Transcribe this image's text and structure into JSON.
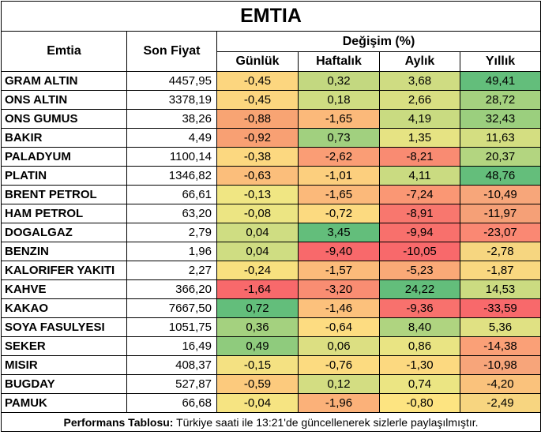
{
  "title": "EMTIA",
  "headers": {
    "commodity": "Emtia",
    "last_price": "Son Fiyat",
    "change_group": "Değişim (%)",
    "daily": "Günlük",
    "weekly": "Haftalık",
    "monthly": "Aylık",
    "yearly": "Yıllık"
  },
  "rows": [
    {
      "name": "GRAM ALTIN",
      "price": "4457,95",
      "daily": "-0,45",
      "weekly": "0,32",
      "monthly": "3,68",
      "yearly": "49,41"
    },
    {
      "name": "ONS ALTIN",
      "price": "3378,19",
      "daily": "-0,45",
      "weekly": "0,18",
      "monthly": "2,66",
      "yearly": "28,72"
    },
    {
      "name": "ONS GUMUS",
      "price": "38,26",
      "daily": "-0,88",
      "weekly": "-1,65",
      "monthly": "4,19",
      "yearly": "32,43"
    },
    {
      "name": "BAKIR",
      "price": "4,49",
      "daily": "-0,92",
      "weekly": "0,73",
      "monthly": "1,35",
      "yearly": "11,63"
    },
    {
      "name": "PALADYUM",
      "price": "1100,14",
      "daily": "-0,38",
      "weekly": "-2,62",
      "monthly": "-8,21",
      "yearly": "20,37"
    },
    {
      "name": "PLATIN",
      "price": "1346,82",
      "daily": "-0,63",
      "weekly": "-1,01",
      "monthly": "4,11",
      "yearly": "48,76"
    },
    {
      "name": "BRENT PETROL",
      "price": "66,61",
      "daily": "-0,13",
      "weekly": "-1,65",
      "monthly": "-7,24",
      "yearly": "-10,49"
    },
    {
      "name": "HAM PETROL",
      "price": "63,20",
      "daily": "-0,08",
      "weekly": "-0,72",
      "monthly": "-8,91",
      "yearly": "-11,97"
    },
    {
      "name": "DOGALGAZ",
      "price": "2,79",
      "daily": "0,04",
      "weekly": "3,45",
      "monthly": "-9,94",
      "yearly": "-23,07"
    },
    {
      "name": "BENZIN",
      "price": "1,96",
      "daily": "0,04",
      "weekly": "-9,40",
      "monthly": "-10,05",
      "yearly": "-2,78"
    },
    {
      "name": "KALORIFER YAKITI",
      "price": "2,27",
      "daily": "-0,24",
      "weekly": "-1,57",
      "monthly": "-5,23",
      "yearly": "-1,87"
    },
    {
      "name": "KAHVE",
      "price": "366,20",
      "daily": "-1,64",
      "weekly": "-3,20",
      "monthly": "24,22",
      "yearly": "14,53"
    },
    {
      "name": "KAKAO",
      "price": "7667,50",
      "daily": "0,72",
      "weekly": "-1,46",
      "monthly": "-9,36",
      "yearly": "-33,59"
    },
    {
      "name": "SOYA FASULYESI",
      "price": "1051,75",
      "daily": "0,36",
      "weekly": "-0,64",
      "monthly": "8,40",
      "yearly": "5,36"
    },
    {
      "name": "SEKER",
      "price": "16,49",
      "daily": "0,49",
      "weekly": "0,06",
      "monthly": "0,86",
      "yearly": "-14,38"
    },
    {
      "name": "MISIR",
      "price": "408,37",
      "daily": "-0,15",
      "weekly": "-0,76",
      "monthly": "-1,30",
      "yearly": "-10,98"
    },
    {
      "name": "BUGDAY",
      "price": "527,87",
      "daily": "-0,59",
      "weekly": "0,12",
      "monthly": "0,74",
      "yearly": "-4,20"
    },
    {
      "name": "PAMUK",
      "price": "66,68",
      "daily": "-0,04",
      "weekly": "-1,96",
      "monthly": "-0,80",
      "yearly": "-2,49"
    }
  ],
  "cell_colors": {
    "daily": [
      "#fcd67f",
      "#fcd67f",
      "#f8a473",
      "#f8a073",
      "#fcd880",
      "#fbbe7b",
      "#f0e683",
      "#ece583",
      "#cfdd82",
      "#cfdd82",
      "#f8e17f",
      "#f8696b",
      "#63be7b",
      "#a4d17f",
      "#8fcb7d",
      "#f4e182",
      "#fcca7d",
      "#f6e482"
    ],
    "weekly": [
      "#c3d880",
      "#cfdc82",
      "#fbb97a",
      "#a1d07f",
      "#fa9d75",
      "#fccf7e",
      "#fbb97a",
      "#fcda80",
      "#63be7b",
      "#f8696b",
      "#fbbb7a",
      "#f98d72",
      "#fcc17c",
      "#fddc81",
      "#dcdf82",
      "#fcdb80",
      "#d3dd82",
      "#fbb179"
    ],
    "monthly": [
      "#cfdc82",
      "#d9df82",
      "#c9db81",
      "#e6e383",
      "#f98b72",
      "#cadb81",
      "#fa9774",
      "#f8776e",
      "#f8706c",
      "#f8696b",
      "#faa977",
      "#63be7b",
      "#f8716d",
      "#afd480",
      "#e9e483",
      "#fcd980",
      "#ebe583",
      "#fde481"
    ],
    "yearly": [
      "#63be7b",
      "#a5d17f",
      "#9bcf7e",
      "#d4de81",
      "#b3d580",
      "#64be7b",
      "#f7a67a",
      "#f5a077",
      "#fa8873",
      "#f6d680",
      "#f9d880",
      "#cbdb81",
      "#f8696b",
      "#e0e183",
      "#faa077",
      "#f7a57a",
      "#fac27c",
      "#f7d580"
    ]
  },
  "footer": {
    "label": "Performans Tablosu:",
    "text": " Türkiye saati ile 13:21'de güncellenerek sizlerle paylaşılmıştır."
  }
}
